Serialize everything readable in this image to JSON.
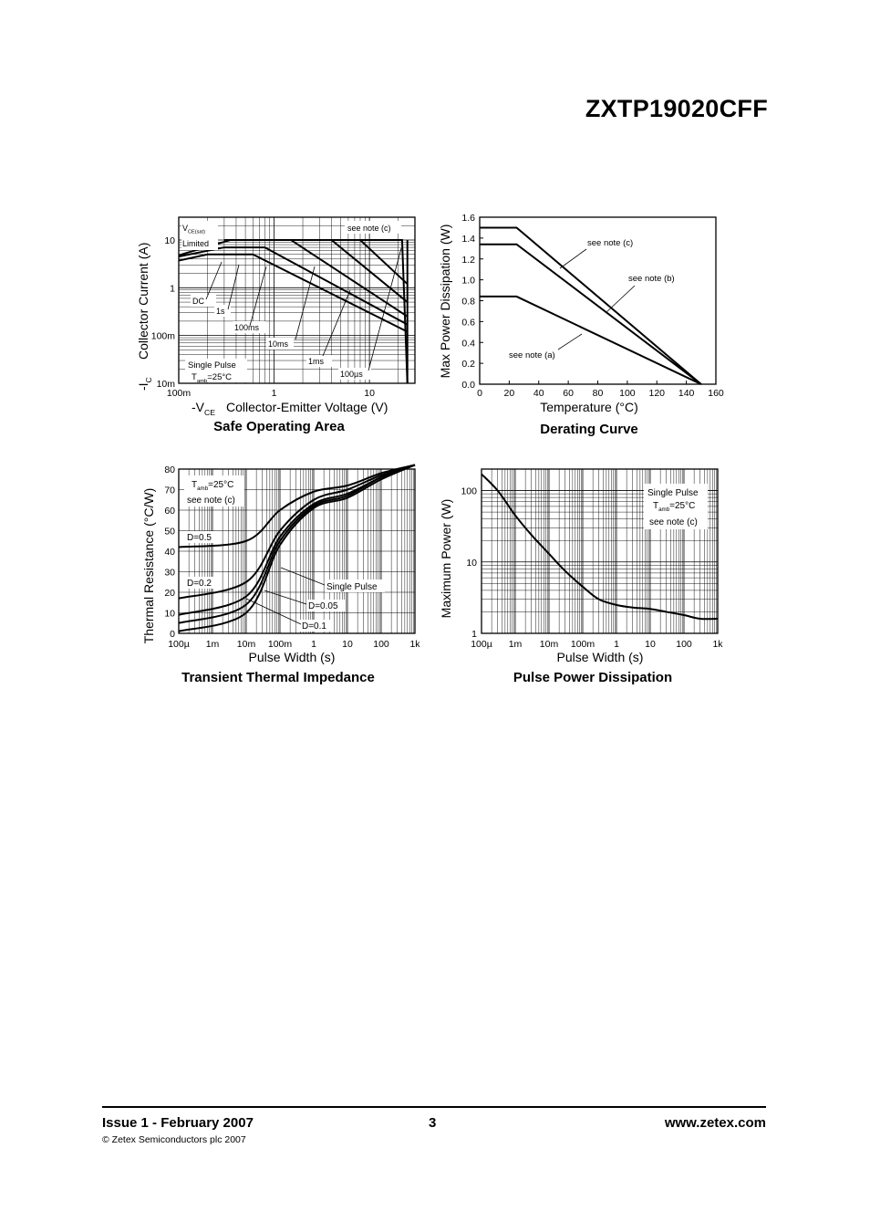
{
  "header": {
    "part_number": "ZXTP19020CFF"
  },
  "footer": {
    "issue": "Issue 1 - February 2007",
    "page": "3",
    "website": "www.zetex.com",
    "copyright": "© Zetex Semiconductors plc 2007"
  },
  "chart_data": [
    {
      "type": "line",
      "title": "Safe Operating Area",
      "xlabel_prefix": "-V",
      "xlabel_sub": "CE",
      "xlabel": "Collector-Emitter Voltage (V)",
      "ylabel_prefix": "-I",
      "ylabel_sub": "C",
      "ylabel": "Collector Current (A)",
      "xscale": "log",
      "yscale": "log",
      "xlim": [
        0.1,
        30
      ],
      "ylim": [
        0.01,
        30
      ],
      "x_ticks": [
        "100m",
        "1",
        "10"
      ],
      "y_ticks": [
        "10m",
        "100m",
        "1",
        "10"
      ],
      "grid": true,
      "annotations": {
        "vce_sat_main": "V",
        "vce_sat_sub": "CE(sat)",
        "limited": "Limited",
        "note": "see note (c)",
        "single_pulse": "Single Pulse",
        "tamb_prefix": "T",
        "tamb_sub": "amb",
        "tamb_value": "=25°C"
      },
      "series": [
        {
          "name": "DC",
          "x": [
            0.1,
            0.2,
            0.6,
            25
          ],
          "y": [
            3.7,
            5.0,
            5.0,
            0.12
          ]
        },
        {
          "name": "1s",
          "x": [
            0.1,
            0.3,
            0.8,
            25
          ],
          "y": [
            4.5,
            7.0,
            7.0,
            0.17
          ]
        },
        {
          "name": "100ms",
          "x": [
            0.1,
            0.35,
            1.5,
            25
          ],
          "y": [
            4.8,
            10,
            10,
            0.25
          ]
        },
        {
          "name": "10ms",
          "x": [
            0.3,
            4,
            25
          ],
          "y": [
            10,
            10,
            0.5
          ]
        },
        {
          "name": "1ms",
          "x": [
            0.3,
            8,
            25
          ],
          "y": [
            10,
            10,
            1.2
          ]
        },
        {
          "name": "100µs",
          "x": [
            0.3,
            22,
            25
          ],
          "y": [
            10,
            10,
            0.01
          ]
        }
      ]
    },
    {
      "type": "line",
      "title": "Derating Curve",
      "xlabel": "Temperature (°C)",
      "ylabel": "Max Power Dissipation (W)",
      "xlim": [
        0,
        160
      ],
      "ylim": [
        0.0,
        1.6
      ],
      "x_ticks": [
        "0",
        "20",
        "40",
        "60",
        "80",
        "100",
        "120",
        "140",
        "160"
      ],
      "y_ticks": [
        "0.0",
        "0.2",
        "0.4",
        "0.6",
        "0.8",
        "1.0",
        "1.2",
        "1.4",
        "1.6"
      ],
      "grid": false,
      "series": [
        {
          "name": "see note (c)",
          "x": [
            0,
            25,
            150
          ],
          "y": [
            1.5,
            1.5,
            0.0
          ]
        },
        {
          "name": "see note (b)",
          "x": [
            0,
            25,
            150
          ],
          "y": [
            1.34,
            1.34,
            0.0
          ]
        },
        {
          "name": "see note (a)",
          "x": [
            0,
            25,
            150
          ],
          "y": [
            0.84,
            0.84,
            0.0
          ]
        }
      ]
    },
    {
      "type": "line",
      "title": "Transient Thermal Impedance",
      "xlabel": "Pulse Width (s)",
      "ylabel": "Thermal Resistance (°C/W)",
      "xscale": "log",
      "xlim": [
        0.0001,
        1000
      ],
      "ylim": [
        0,
        80
      ],
      "x_ticks": [
        "100µ",
        "1m",
        "10m",
        "100m",
        "1",
        "10",
        "100",
        "1k"
      ],
      "y_ticks": [
        "0",
        "10",
        "20",
        "30",
        "40",
        "50",
        "60",
        "70",
        "80"
      ],
      "grid": true,
      "annotations": {
        "tamb_prefix": "T",
        "tamb_sub": "amb",
        "tamb_value": "=25°C",
        "note": "see note (c)"
      },
      "series": [
        {
          "name": "D=0.5",
          "x": [
            0.0001,
            0.01,
            0.1,
            1,
            10,
            100,
            1000
          ],
          "y": [
            42,
            45,
            60,
            69,
            72,
            78,
            82
          ]
        },
        {
          "name": "D=0.2",
          "x": [
            0.0001,
            0.01,
            0.1,
            1,
            10,
            100,
            1000
          ],
          "y": [
            17,
            25,
            50,
            65,
            70,
            77,
            82
          ]
        },
        {
          "name": "D=0.1",
          "x": [
            0.0001,
            0.01,
            0.1,
            1,
            10,
            100,
            1000
          ],
          "y": [
            9,
            18,
            47,
            63,
            68,
            76,
            82
          ]
        },
        {
          "name": "D=0.05",
          "x": [
            0.0001,
            0.01,
            0.1,
            1,
            10,
            100,
            1000
          ],
          "y": [
            5,
            14,
            45,
            62,
            67,
            76,
            82
          ]
        },
        {
          "name": "Single Pulse",
          "x": [
            0.0001,
            0.01,
            0.1,
            1,
            10,
            100,
            1000
          ],
          "y": [
            1,
            10,
            43,
            61,
            66,
            75,
            82
          ]
        }
      ]
    },
    {
      "type": "line",
      "title": "Pulse Power Dissipation",
      "xlabel": "Pulse Width (s)",
      "ylabel": "Maximum Power (W)",
      "xscale": "log",
      "yscale": "log",
      "xlim": [
        0.0001,
        1000
      ],
      "ylim": [
        1,
        200
      ],
      "x_ticks": [
        "100µ",
        "1m",
        "10m",
        "100m",
        "1",
        "10",
        "100",
        "1k"
      ],
      "y_ticks": [
        "1",
        "10",
        "100"
      ],
      "grid": true,
      "annotations": {
        "single_pulse": "Single Pulse",
        "tamb_prefix": "T",
        "tamb_sub": "amb",
        "tamb_value": "=25°C",
        "note": "see note (c)"
      },
      "series": [
        {
          "name": "Single Pulse",
          "x": [
            0.0001,
            0.0003,
            0.001,
            0.003,
            0.01,
            0.03,
            0.1,
            0.3,
            1,
            3,
            10,
            30,
            100,
            300,
            1000
          ],
          "y": [
            170,
            100,
            45,
            24,
            13,
            7.5,
            4.5,
            3.0,
            2.5,
            2.3,
            2.2,
            2.0,
            1.8,
            1.6,
            1.6
          ]
        }
      ]
    }
  ]
}
